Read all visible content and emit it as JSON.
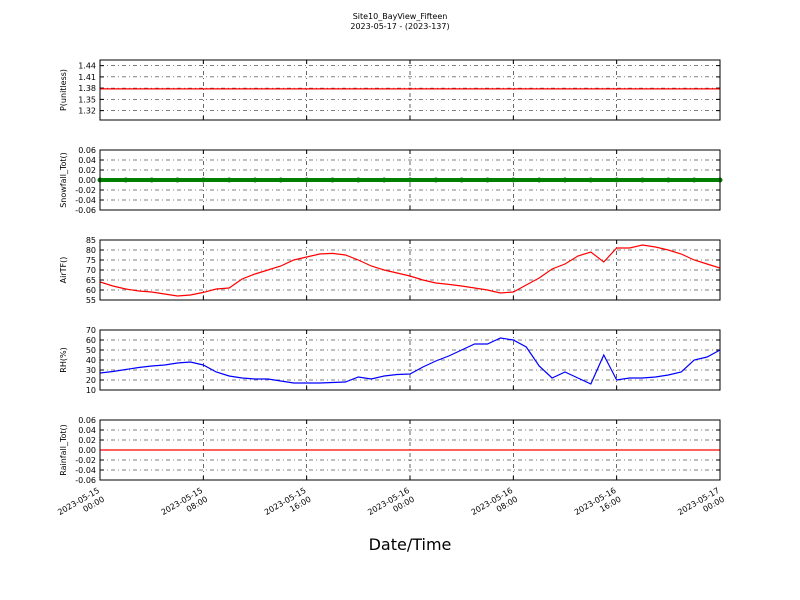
{
  "title": "Site10_BayView_Fifteen",
  "subtitle": "2023-05-17 - (2023-137)",
  "xlabel": "Date/Time",
  "chart_data": [
    {
      "type": "line",
      "ylabel": "P(unitless)",
      "grid": true,
      "xlim": [
        "2023-05-15 00:00",
        "2023-05-17 00:00"
      ],
      "xticks": [
        "2023-05-15 00:00",
        "2023-05-15 08:00",
        "2023-05-15 16:00",
        "2023-05-16 00:00",
        "2023-05-16 08:00",
        "2023-05-16 16:00",
        "2023-05-17 00:00"
      ],
      "ylim": [
        1.295,
        1.455
      ],
      "yticks": [
        1.32,
        1.35,
        1.38,
        1.41,
        1.44
      ],
      "x": [
        "2023-05-15 00:00",
        "2023-05-17 00:00"
      ],
      "series": [
        {
          "name": "P",
          "color": "#ff0000",
          "values": [
            1.378,
            1.378
          ]
        }
      ]
    },
    {
      "type": "dots",
      "ylabel": "Snowfall_Tot()",
      "grid": true,
      "xlim": [
        "2023-05-15 00:00",
        "2023-05-17 00:00"
      ],
      "xticks": [
        "2023-05-15 00:00",
        "2023-05-15 08:00",
        "2023-05-15 16:00",
        "2023-05-16 00:00",
        "2023-05-16 08:00",
        "2023-05-16 16:00",
        "2023-05-17 00:00"
      ],
      "ylim": [
        -0.06,
        0.06
      ],
      "yticks": [
        -0.06,
        -0.04,
        -0.02,
        {
          "value": 0,
          "label": "0.00"
        },
        0.02,
        0.04,
        0.06
      ],
      "x": [
        "2023-05-15 00:00",
        "2023-05-15 02:00",
        "2023-05-15 04:00",
        "2023-05-15 06:00",
        "2023-05-15 08:00",
        "2023-05-15 10:00",
        "2023-05-15 12:00",
        "2023-05-15 14:00",
        "2023-05-15 16:00",
        "2023-05-15 18:00",
        "2023-05-15 20:00",
        "2023-05-15 22:00",
        "2023-05-16 00:00",
        "2023-05-16 02:00",
        "2023-05-16 04:00",
        "2023-05-16 06:00",
        "2023-05-16 08:00",
        "2023-05-16 10:00",
        "2023-05-16 12:00",
        "2023-05-16 14:00",
        "2023-05-16 16:00",
        "2023-05-16 18:00",
        "2023-05-16 20:00",
        "2023-05-16 22:00",
        "2023-05-17 00:00"
      ],
      "series": [
        {
          "name": "Snowfall_Tot",
          "color": "#007f00",
          "values": [
            0,
            0,
            0,
            0,
            0,
            0,
            0,
            0,
            0,
            0,
            0,
            0,
            0,
            0,
            0,
            0,
            0,
            0,
            0,
            0,
            0,
            0,
            0,
            0,
            0
          ]
        }
      ]
    },
    {
      "type": "line",
      "ylabel": "AirTF()",
      "grid": true,
      "xlim": [
        "2023-05-15 00:00",
        "2023-05-17 00:00"
      ],
      "xticks": [
        "2023-05-15 00:00",
        "2023-05-15 08:00",
        "2023-05-15 16:00",
        "2023-05-16 00:00",
        "2023-05-16 08:00",
        "2023-05-16 16:00",
        "2023-05-17 00:00"
      ],
      "ylim": [
        55,
        85
      ],
      "yticks": [
        55,
        60,
        65,
        70,
        75,
        80,
        85
      ],
      "x": [
        "2023-05-15 00:00",
        "2023-05-15 01:00",
        "2023-05-15 02:00",
        "2023-05-15 03:00",
        "2023-05-15 04:00",
        "2023-05-15 05:00",
        "2023-05-15 06:00",
        "2023-05-15 07:00",
        "2023-05-15 08:00",
        "2023-05-15 09:00",
        "2023-05-15 10:00",
        "2023-05-15 11:00",
        "2023-05-15 12:00",
        "2023-05-15 13:00",
        "2023-05-15 14:00",
        "2023-05-15 15:00",
        "2023-05-15 16:00",
        "2023-05-15 17:00",
        "2023-05-15 18:00",
        "2023-05-15 19:00",
        "2023-05-15 20:00",
        "2023-05-15 21:00",
        "2023-05-15 22:00",
        "2023-05-15 23:00",
        "2023-05-16 00:00",
        "2023-05-16 01:00",
        "2023-05-16 02:00",
        "2023-05-16 03:00",
        "2023-05-16 04:00",
        "2023-05-16 05:00",
        "2023-05-16 06:00",
        "2023-05-16 07:00",
        "2023-05-16 08:00",
        "2023-05-16 09:00",
        "2023-05-16 10:00",
        "2023-05-16 11:00",
        "2023-05-16 12:00",
        "2023-05-16 13:00",
        "2023-05-16 14:00",
        "2023-05-16 15:00",
        "2023-05-16 16:00",
        "2023-05-16 17:00",
        "2023-05-16 18:00",
        "2023-05-16 19:00",
        "2023-05-16 20:00",
        "2023-05-16 21:00",
        "2023-05-16 22:00",
        "2023-05-16 23:00",
        "2023-05-17 00:00"
      ],
      "series": [
        {
          "name": "AirTF",
          "color": "#ff0000",
          "values": [
            64,
            62,
            60.5,
            59.5,
            59,
            58,
            57,
            57.5,
            58.8,
            60.5,
            61,
            65.5,
            68,
            70,
            72,
            75,
            76.5,
            78,
            78.3,
            77.5,
            75,
            72,
            70,
            68.5,
            67,
            65,
            63.5,
            62.8,
            62,
            61,
            60,
            58.5,
            59,
            62.5,
            66,
            70.5,
            73,
            77,
            79,
            74,
            81,
            81,
            82.5,
            81.5,
            80,
            78,
            75,
            73,
            71
          ]
        }
      ]
    },
    {
      "type": "line",
      "ylabel": "RH(%)",
      "grid": true,
      "xlim": [
        "2023-05-15 00:00",
        "2023-05-17 00:00"
      ],
      "xticks": [
        "2023-05-15 00:00",
        "2023-05-15 08:00",
        "2023-05-15 16:00",
        "2023-05-16 00:00",
        "2023-05-16 08:00",
        "2023-05-16 16:00",
        "2023-05-17 00:00"
      ],
      "ylim": [
        10,
        70
      ],
      "yticks": [
        10,
        20,
        30,
        40,
        50,
        60,
        70
      ],
      "x": [
        "2023-05-15 00:00",
        "2023-05-15 01:00",
        "2023-05-15 02:00",
        "2023-05-15 03:00",
        "2023-05-15 04:00",
        "2023-05-15 05:00",
        "2023-05-15 06:00",
        "2023-05-15 07:00",
        "2023-05-15 08:00",
        "2023-05-15 09:00",
        "2023-05-15 10:00",
        "2023-05-15 11:00",
        "2023-05-15 12:00",
        "2023-05-15 13:00",
        "2023-05-15 14:00",
        "2023-05-15 15:00",
        "2023-05-15 16:00",
        "2023-05-15 17:00",
        "2023-05-15 18:00",
        "2023-05-15 19:00",
        "2023-05-15 20:00",
        "2023-05-15 21:00",
        "2023-05-15 22:00",
        "2023-05-15 23:00",
        "2023-05-16 00:00",
        "2023-05-16 01:00",
        "2023-05-16 02:00",
        "2023-05-16 03:00",
        "2023-05-16 04:00",
        "2023-05-16 05:00",
        "2023-05-16 06:00",
        "2023-05-16 07:00",
        "2023-05-16 08:00",
        "2023-05-16 09:00",
        "2023-05-16 10:00",
        "2023-05-16 11:00",
        "2023-05-16 12:00",
        "2023-05-16 13:00",
        "2023-05-16 14:00",
        "2023-05-16 15:00",
        "2023-05-16 16:00",
        "2023-05-16 17:00",
        "2023-05-16 18:00",
        "2023-05-16 19:00",
        "2023-05-16 20:00",
        "2023-05-16 21:00",
        "2023-05-16 22:00",
        "2023-05-16 23:00",
        "2023-05-17 00:00"
      ],
      "series": [
        {
          "name": "RH",
          "color": "#0000ff",
          "values": [
            27,
            28.5,
            30.5,
            32.5,
            34,
            35,
            37,
            38,
            35,
            28,
            24,
            22,
            21,
            21,
            19,
            17,
            17,
            17,
            17.5,
            18,
            23,
            21,
            24,
            25.5,
            26,
            33,
            39,
            44,
            50,
            56,
            56,
            62,
            60,
            53,
            34,
            22,
            28,
            22,
            16,
            45,
            20,
            22,
            22,
            23,
            25,
            28,
            40,
            43,
            50
          ]
        }
      ]
    },
    {
      "type": "line",
      "ylabel": "Rainfall_Tot()",
      "grid": true,
      "xlim": [
        "2023-05-15 00:00",
        "2023-05-17 00:00"
      ],
      "xticks": [
        "2023-05-15 00:00",
        "2023-05-15 08:00",
        "2023-05-15 16:00",
        "2023-05-16 00:00",
        "2023-05-16 08:00",
        "2023-05-16 16:00",
        "2023-05-17 00:00"
      ],
      "ylim": [
        -0.06,
        0.06
      ],
      "yticks": [
        -0.06,
        -0.04,
        -0.02,
        {
          "value": 0,
          "label": "0.00"
        },
        0.02,
        0.04,
        0.06
      ],
      "x": [
        "2023-05-15 00:00",
        "2023-05-17 00:00"
      ],
      "series": [
        {
          "name": "Rainfall_Tot",
          "color": "#ff0000",
          "values": [
            0,
            0
          ]
        }
      ]
    }
  ]
}
